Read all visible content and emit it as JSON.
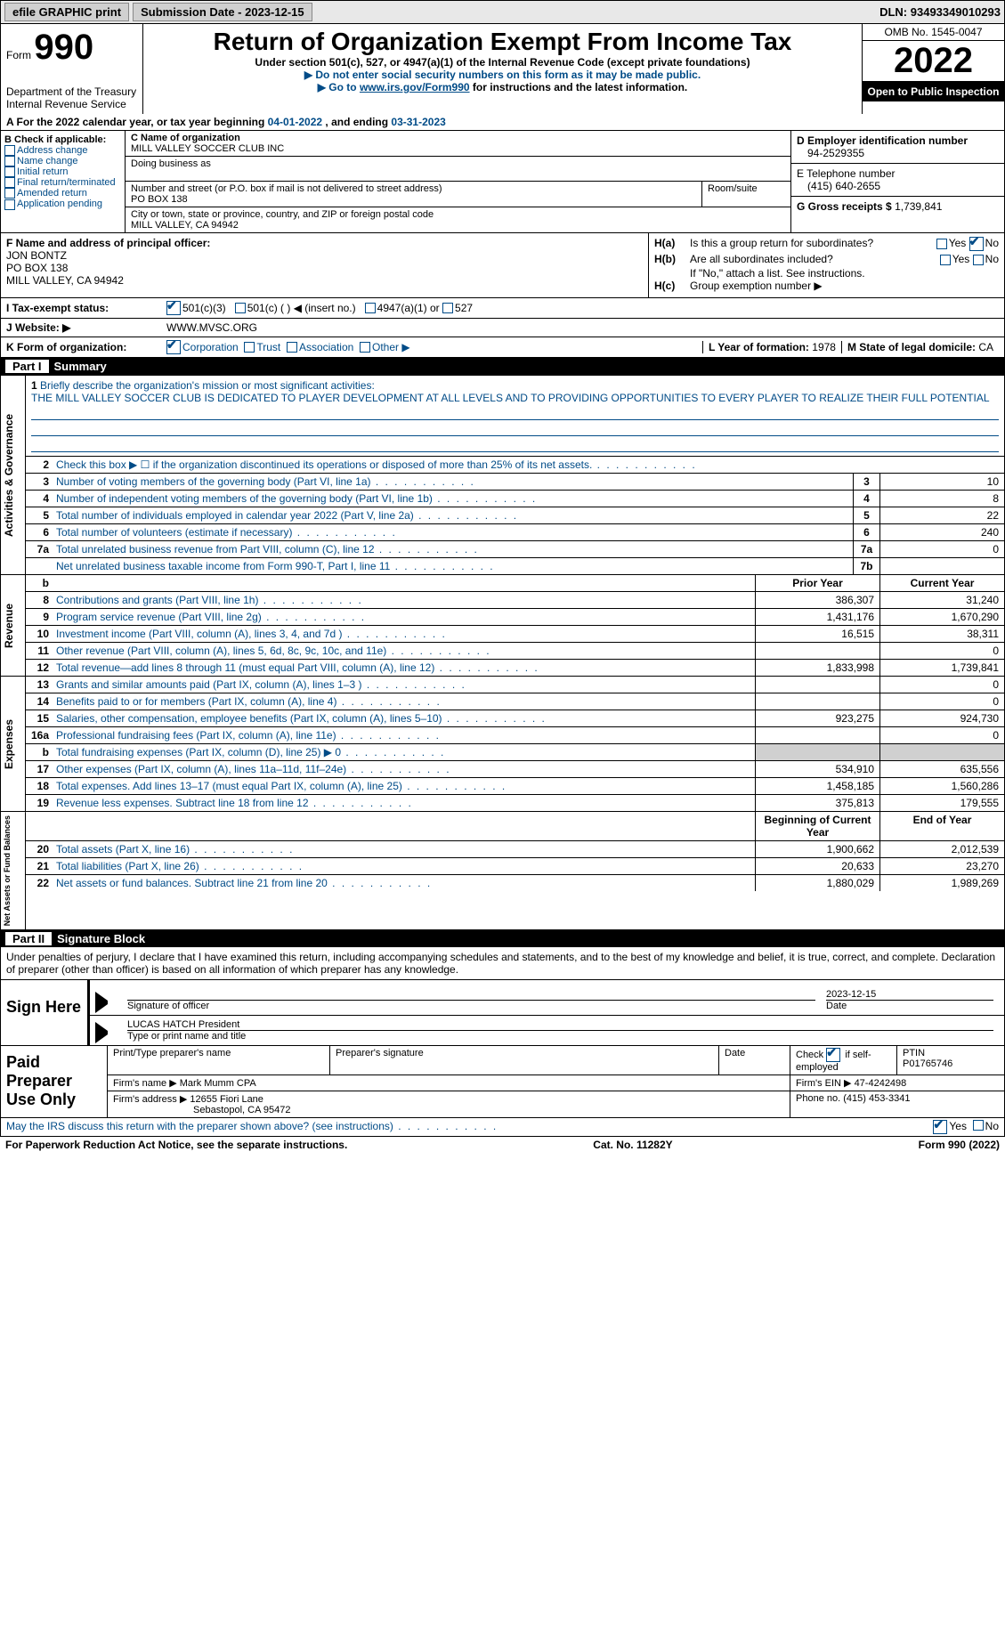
{
  "topbar": {
    "efile": "efile GRAPHIC print",
    "submission_label": "Submission Date - ",
    "submission_date": "2023-12-15",
    "dln_label": "DLN: ",
    "dln": "93493349010293"
  },
  "header": {
    "form_label": "Form",
    "form_num": "990",
    "dept1": "Department of the Treasury",
    "dept2": "Internal Revenue Service",
    "title": "Return of Organization Exempt From Income Tax",
    "sub1": "Under section 501(c), 527, or 4947(a)(1) of the Internal Revenue Code (except private foundations)",
    "sub2": "▶ Do not enter social security numbers on this form as it may be made public.",
    "sub3_pre": "▶ Go to ",
    "sub3_link": "www.irs.gov/Form990",
    "sub3_post": " for instructions and the latest information.",
    "omb": "OMB No. 1545-0047",
    "year": "2022",
    "open": "Open to Public Inspection"
  },
  "cal": {
    "text_a": "A For the 2022 calendar year, or tax year beginning ",
    "begin": "04-01-2022",
    "text_mid": " , and ending ",
    "end": "03-31-2023"
  },
  "b": {
    "label": "B Check if applicable:",
    "opts": [
      "Address change",
      "Name change",
      "Initial return",
      "Final return/terminated",
      "Amended return",
      "Application pending"
    ]
  },
  "c": {
    "name_label": "C Name of organization",
    "name": "MILL VALLEY SOCCER CLUB INC",
    "dba_label": "Doing business as",
    "dba": "",
    "street_label": "Number and street (or P.O. box if mail is not delivered to street address)",
    "room_label": "Room/suite",
    "street": "PO BOX 138",
    "city_label": "City or town, state or province, country, and ZIP or foreign postal code",
    "city": "MILL VALLEY, CA  94942"
  },
  "d": {
    "ein_label": "D Employer identification number",
    "ein": "94-2529355",
    "phone_label": "E Telephone number",
    "phone": "(415) 640-2655",
    "gross_label": "G Gross receipts $ ",
    "gross": "1,739,841"
  },
  "f": {
    "label": "F Name and address of principal officer:",
    "name": "JON BONTZ",
    "street": "PO BOX 138",
    "city": "MILL VALLEY, CA  94942"
  },
  "h": {
    "a_label": "H(a)",
    "a_text": "Is this a group return for subordinates?",
    "a_yes": "Yes",
    "a_no": "No",
    "b_label": "H(b)",
    "b_text": "Are all subordinates included?",
    "b_note": "If \"No,\" attach a list. See instructions.",
    "c_label": "H(c)",
    "c_text": "Group exemption number ▶"
  },
  "i": {
    "label": "I   Tax-exempt status:",
    "opt1": "501(c)(3)",
    "opt2": "501(c) (  ) ◀ (insert no.)",
    "opt3": "4947(a)(1) or",
    "opt4": "527"
  },
  "j": {
    "label": "J   Website: ▶",
    "val": "WWW.MVSC.ORG"
  },
  "k": {
    "label": "K Form of organization:",
    "opts": [
      "Corporation",
      "Trust",
      "Association",
      "Other ▶"
    ],
    "l_label": "L Year of formation: ",
    "l_val": "1978",
    "m_label": "M State of legal domicile: ",
    "m_val": "CA"
  },
  "part1": {
    "label": "Part I",
    "title": "Summary"
  },
  "mission": {
    "num": "1",
    "label": "Briefly describe the organization's mission or most significant activities:",
    "text": "THE MILL VALLEY SOCCER CLUB IS DEDICATED TO PLAYER DEVELOPMENT AT ALL LEVELS AND TO PROVIDING OPPORTUNITIES TO EVERY PLAYER TO REALIZE THEIR FULL POTENTIAL"
  },
  "gov_lines": [
    {
      "num": "2",
      "desc": "Check this box ▶ ☐ if the organization discontinued its operations or disposed of more than 25% of its net assets.",
      "box": "",
      "val": ""
    },
    {
      "num": "3",
      "desc": "Number of voting members of the governing body (Part VI, line 1a)",
      "box": "3",
      "val": "10"
    },
    {
      "num": "4",
      "desc": "Number of independent voting members of the governing body (Part VI, line 1b)",
      "box": "4",
      "val": "8"
    },
    {
      "num": "5",
      "desc": "Total number of individuals employed in calendar year 2022 (Part V, line 2a)",
      "box": "5",
      "val": "22"
    },
    {
      "num": "6",
      "desc": "Total number of volunteers (estimate if necessary)",
      "box": "6",
      "val": "240"
    },
    {
      "num": "7a",
      "desc": "Total unrelated business revenue from Part VIII, column (C), line 12",
      "box": "7a",
      "val": "0"
    },
    {
      "num": "",
      "desc": "Net unrelated business taxable income from Form 990-T, Part I, line 11",
      "box": "7b",
      "val": ""
    }
  ],
  "rev_header": {
    "prior": "Prior Year",
    "current": "Current Year"
  },
  "rev_lines": [
    {
      "num": "8",
      "desc": "Contributions and grants (Part VIII, line 1h)",
      "prior": "386,307",
      "curr": "31,240"
    },
    {
      "num": "9",
      "desc": "Program service revenue (Part VIII, line 2g)",
      "prior": "1,431,176",
      "curr": "1,670,290"
    },
    {
      "num": "10",
      "desc": "Investment income (Part VIII, column (A), lines 3, 4, and 7d )",
      "prior": "16,515",
      "curr": "38,311"
    },
    {
      "num": "11",
      "desc": "Other revenue (Part VIII, column (A), lines 5, 6d, 8c, 9c, 10c, and 11e)",
      "prior": "",
      "curr": "0"
    },
    {
      "num": "12",
      "desc": "Total revenue—add lines 8 through 11 (must equal Part VIII, column (A), line 12)",
      "prior": "1,833,998",
      "curr": "1,739,841"
    }
  ],
  "exp_lines": [
    {
      "num": "13",
      "desc": "Grants and similar amounts paid (Part IX, column (A), lines 1–3 )",
      "prior": "",
      "curr": "0"
    },
    {
      "num": "14",
      "desc": "Benefits paid to or for members (Part IX, column (A), line 4)",
      "prior": "",
      "curr": "0"
    },
    {
      "num": "15",
      "desc": "Salaries, other compensation, employee benefits (Part IX, column (A), lines 5–10)",
      "prior": "923,275",
      "curr": "924,730"
    },
    {
      "num": "16a",
      "desc": "Professional fundraising fees (Part IX, column (A), line 11e)",
      "prior": "",
      "curr": "0"
    },
    {
      "num": "b",
      "desc": "Total fundraising expenses (Part IX, column (D), line 25) ▶ 0",
      "prior": "",
      "curr": "",
      "shaded": true
    },
    {
      "num": "17",
      "desc": "Other expenses (Part IX, column (A), lines 11a–11d, 11f–24e)",
      "prior": "534,910",
      "curr": "635,556"
    },
    {
      "num": "18",
      "desc": "Total expenses. Add lines 13–17 (must equal Part IX, column (A), line 25)",
      "prior": "1,458,185",
      "curr": "1,560,286"
    },
    {
      "num": "19",
      "desc": "Revenue less expenses. Subtract line 18 from line 12",
      "prior": "375,813",
      "curr": "179,555"
    }
  ],
  "net_header": {
    "prior": "Beginning of Current Year",
    "current": "End of Year"
  },
  "net_lines": [
    {
      "num": "20",
      "desc": "Total assets (Part X, line 16)",
      "prior": "1,900,662",
      "curr": "2,012,539"
    },
    {
      "num": "21",
      "desc": "Total liabilities (Part X, line 26)",
      "prior": "20,633",
      "curr": "23,270"
    },
    {
      "num": "22",
      "desc": "Net assets or fund balances. Subtract line 21 from line 20",
      "prior": "1,880,029",
      "curr": "1,989,269"
    }
  ],
  "side_labels": {
    "gov": "Activities & Governance",
    "rev": "Revenue",
    "exp": "Expenses",
    "net": "Net Assets or Fund Balances"
  },
  "part2": {
    "label": "Part II",
    "title": "Signature Block"
  },
  "sig": {
    "text": "Under penalties of perjury, I declare that I have examined this return, including accompanying schedules and statements, and to the best of my knowledge and belief, it is true, correct, and complete. Declaration of preparer (other than officer) is based on all information of which preparer has any knowledge.",
    "sign_here": "Sign Here",
    "sig_officer": "Signature of officer",
    "date_label": "Date",
    "date": "2023-12-15",
    "name": "LUCAS HATCH President",
    "name_label": "Type or print name and title"
  },
  "prep": {
    "label": "Paid Preparer Use Only",
    "h1": "Print/Type preparer's name",
    "h2": "Preparer's signature",
    "h3": "Date",
    "h4_a": "Check",
    "h4_b": "if self-employed",
    "h5": "PTIN",
    "ptin": "P01765746",
    "firm_name_label": "Firm's name    ▶",
    "firm_name": "Mark Mumm CPA",
    "firm_ein_label": "Firm's EIN ▶",
    "firm_ein": "47-4242498",
    "firm_addr_label": "Firm's address ▶",
    "firm_addr1": "12655 Fiori Lane",
    "firm_addr2": "Sebastopol, CA  95472",
    "phone_label": "Phone no.",
    "phone": "(415) 453-3341"
  },
  "discuss": {
    "text": "May the IRS discuss this return with the preparer shown above? (see instructions)",
    "yes": "Yes",
    "no": "No"
  },
  "footer": {
    "left": "For Paperwork Reduction Act Notice, see the separate instructions.",
    "mid": "Cat. No. 11282Y",
    "right": "Form 990 (2022)"
  }
}
